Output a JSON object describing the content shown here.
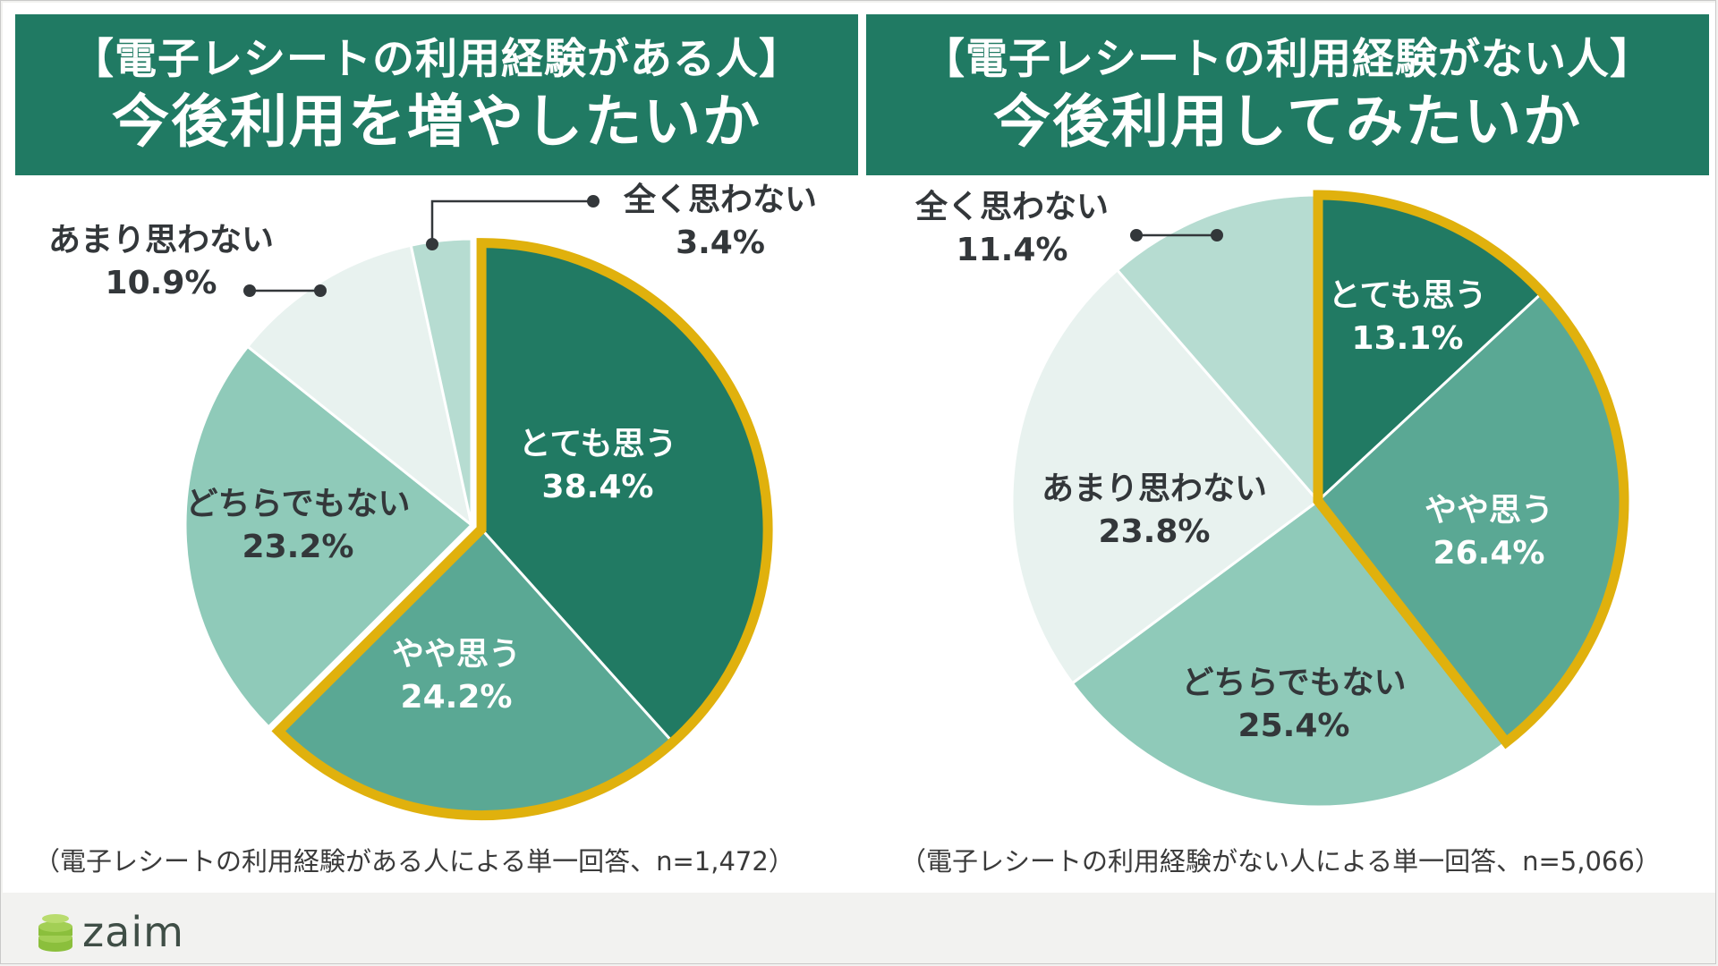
{
  "panels": [
    {
      "title_line1": "【電子レシートの利用経験がある人】",
      "title_line2": "今後利用を増やしたいか",
      "note": "（電子レシートの利用経験がある人による単一回答、n=1,472）"
    },
    {
      "title_line1": "【電子レシートの利用経験がない人】",
      "title_line2": "今後利用してみたいか",
      "note": "（電子レシートの利用経験がない人による単一回答、n=5,066）"
    }
  ],
  "chart_data": [
    {
      "type": "pie",
      "title": "【電子レシートの利用経験がある人】今後利用を増やしたいか",
      "start": "12 o'clock",
      "direction": "clockwise",
      "highlighted": [
        "とても思う",
        "やや思う"
      ],
      "slices": [
        {
          "label": "とても思う",
          "value": 38.4,
          "value_text": "38.4%",
          "color": "#217a63",
          "text_color": "#ffffff"
        },
        {
          "label": "やや思う",
          "value": 24.2,
          "value_text": "24.2%",
          "color": "#5aa894",
          "text_color": "#ffffff"
        },
        {
          "label": "どちらでもない",
          "value": 23.2,
          "value_text": "23.2%",
          "color": "#8fcab9",
          "text_color": "#33373a"
        },
        {
          "label": "あまり思わない",
          "value": 10.9,
          "value_text": "10.9%",
          "color": "#e8f2ef",
          "text_color": "#33373a"
        },
        {
          "label": "全く思わない",
          "value": 3.4,
          "value_text": "3.4%",
          "color": "#b6dcd1",
          "text_color": "#33373a"
        }
      ]
    },
    {
      "type": "pie",
      "title": "【電子レシートの利用経験がない人】今後利用してみたいか",
      "start": "12 o'clock",
      "direction": "clockwise",
      "highlighted": [
        "とても思う",
        "やや思う"
      ],
      "slices": [
        {
          "label": "とても思う",
          "value": 13.1,
          "value_text": "13.1%",
          "color": "#217a63",
          "text_color": "#ffffff"
        },
        {
          "label": "やや思う",
          "value": 26.4,
          "value_text": "26.4%",
          "color": "#5aa894",
          "text_color": "#ffffff"
        },
        {
          "label": "どちらでもない",
          "value": 25.4,
          "value_text": "25.4%",
          "color": "#8fcab9",
          "text_color": "#33373a"
        },
        {
          "label": "あまり思わない",
          "value": 23.8,
          "value_text": "23.8%",
          "color": "#e8f2ef",
          "text_color": "#33373a"
        },
        {
          "label": "全く思わない",
          "value": 11.4,
          "value_text": "11.4%",
          "color": "#b6dcd1",
          "text_color": "#33373a"
        }
      ]
    }
  ],
  "colors": {
    "header": "#207a63",
    "highlight_outline": "#e0b10d"
  },
  "footer": {
    "logo_text": "zaim"
  }
}
